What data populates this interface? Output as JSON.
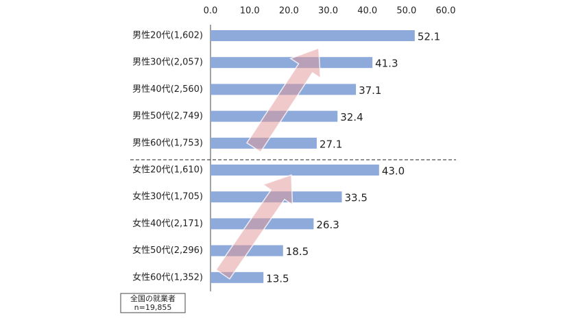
{
  "chart_data": {
    "type": "bar",
    "orientation": "horizontal",
    "categories": [
      "男性20代(1,602)",
      "男性30代(2,057)",
      "男性40代(2,560)",
      "男性50代(2,749)",
      "男性60代(1,753)",
      "女性20代(1,610)",
      "女性30代(1,705)",
      "女性40代(2,171)",
      "女性50代(2,296)",
      "女性60代(1,352)"
    ],
    "values": [
      52.1,
      41.3,
      37.1,
      32.4,
      27.1,
      43.0,
      33.5,
      26.3,
      18.5,
      13.5
    ],
    "value_labels": [
      "52.1",
      "41.3",
      "37.1",
      "32.4",
      "27.1",
      "43.0",
      "33.5",
      "26.3",
      "18.5",
      "13.5"
    ],
    "color": "#8eaadb",
    "xlim": [
      0,
      60
    ],
    "xticks": [
      {
        "value": 0,
        "label": "0.0"
      },
      {
        "value": 10,
        "label": "10.0"
      },
      {
        "value": 20,
        "label": "20.0"
      },
      {
        "value": 30,
        "label": "30.0"
      },
      {
        "value": 40,
        "label": "40.0"
      },
      {
        "value": 50,
        "label": "50.0"
      },
      {
        "value": 60,
        "label": "60.0"
      }
    ],
    "grid": false,
    "annotation": [
      "全国の就業者",
      "n=19,855"
    ]
  }
}
